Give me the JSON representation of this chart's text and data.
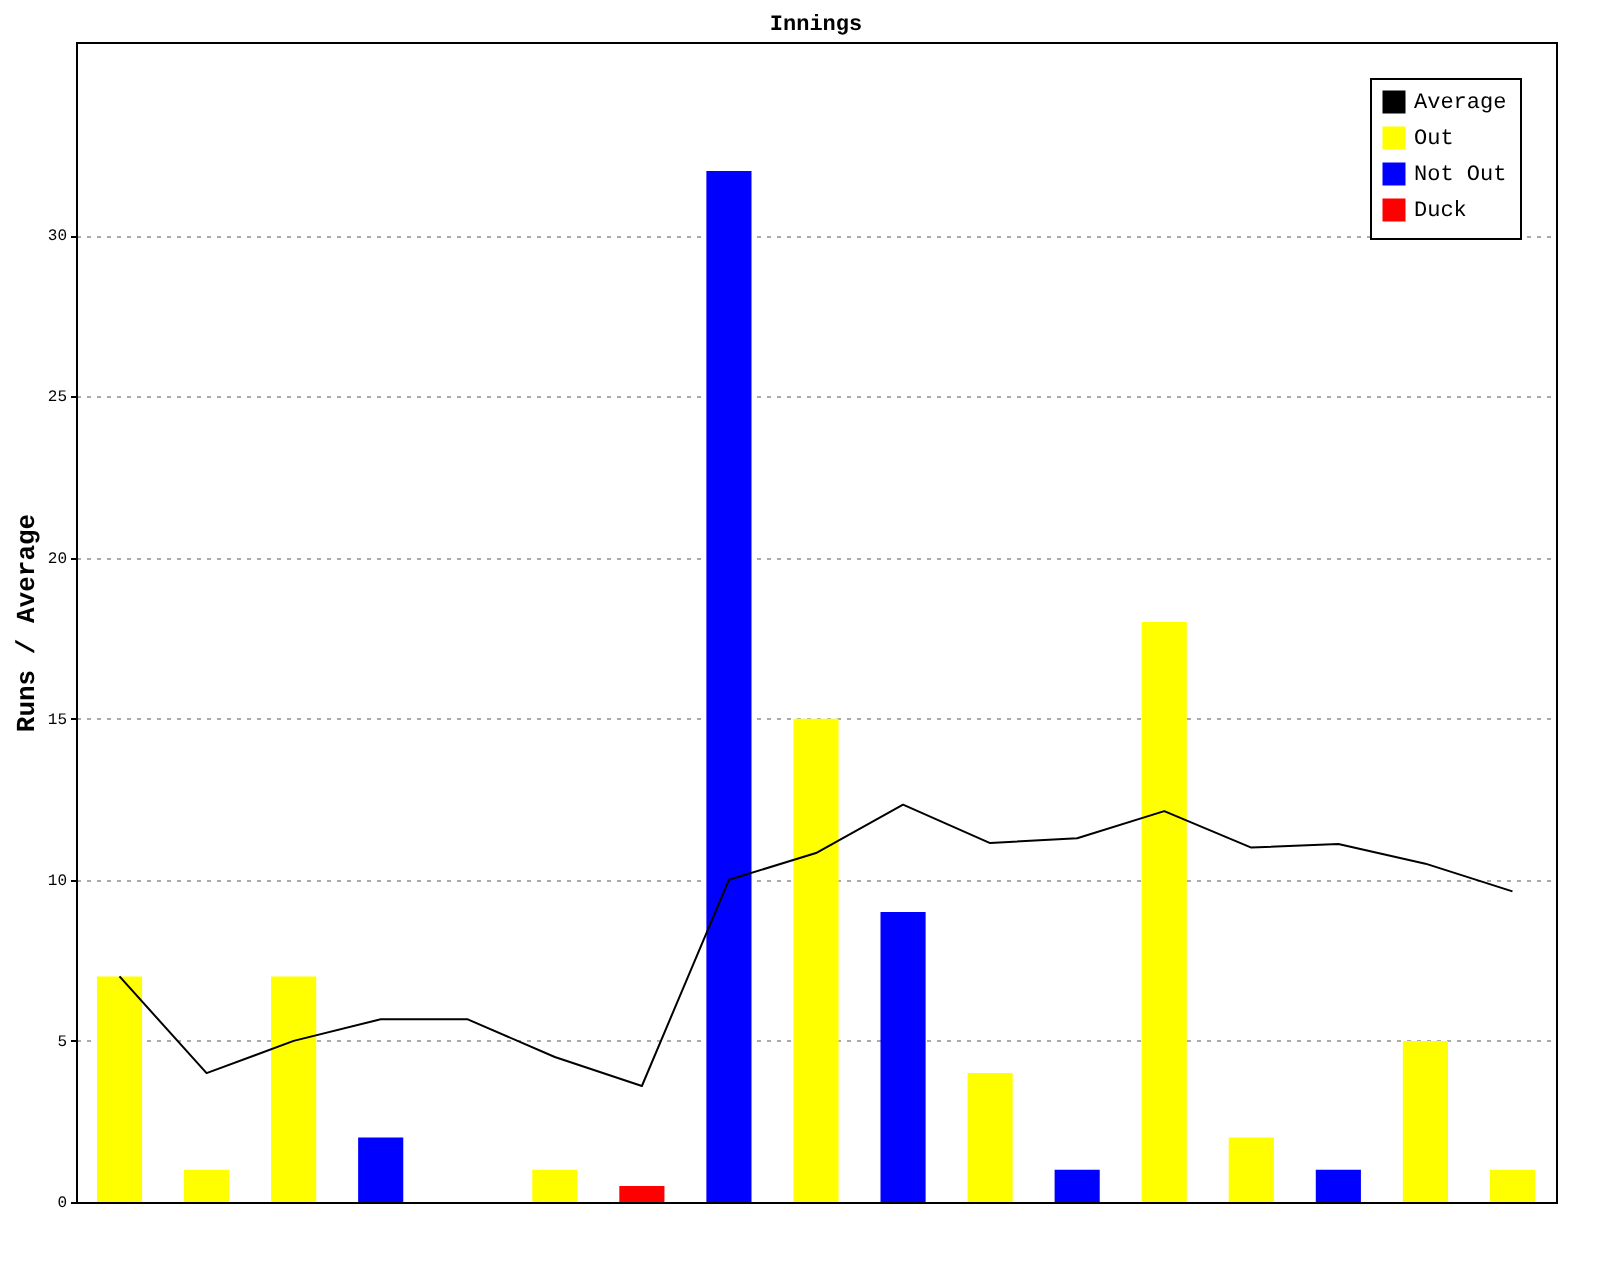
{
  "chart_data": {
    "type": "bar",
    "title": "Innings",
    "ylabel": "Runs / Average",
    "categories": [
      null,
      null,
      null,
      null,
      null,
      null,
      null,
      null,
      null,
      null,
      null,
      null,
      null,
      null,
      null,
      null,
      null
    ],
    "series": [
      {
        "name": "Average",
        "type": "line",
        "color": "#000000",
        "values": [
          7,
          4,
          5,
          5.67,
          5.67,
          4.5,
          3.6,
          10,
          10.83,
          12.33,
          11.14,
          11.29,
          12.13,
          11,
          11.11,
          10.5,
          9.64
        ]
      },
      {
        "name": "Out",
        "color": "#ffff00",
        "values": [
          7,
          1,
          7,
          null,
          null,
          1,
          null,
          null,
          15,
          null,
          4,
          null,
          18,
          2,
          null,
          5,
          1
        ]
      },
      {
        "name": "Not Out",
        "color": "#0000ff",
        "values": [
          null,
          null,
          null,
          2,
          0,
          null,
          null,
          32,
          null,
          9,
          null,
          1,
          null,
          null,
          1,
          null,
          null
        ]
      },
      {
        "name": "Duck",
        "color": "#ff0000",
        "values": [
          null,
          null,
          null,
          null,
          null,
          null,
          0.5,
          null,
          null,
          null,
          null,
          null,
          null,
          null,
          null,
          null,
          null
        ]
      }
    ],
    "ylim": [
      0,
      36
    ],
    "yticks": [
      0,
      5,
      10,
      15,
      20,
      25,
      30
    ],
    "grid": "y",
    "legend": "top right",
    "marker": "none",
    "tick_labels": "y"
  }
}
